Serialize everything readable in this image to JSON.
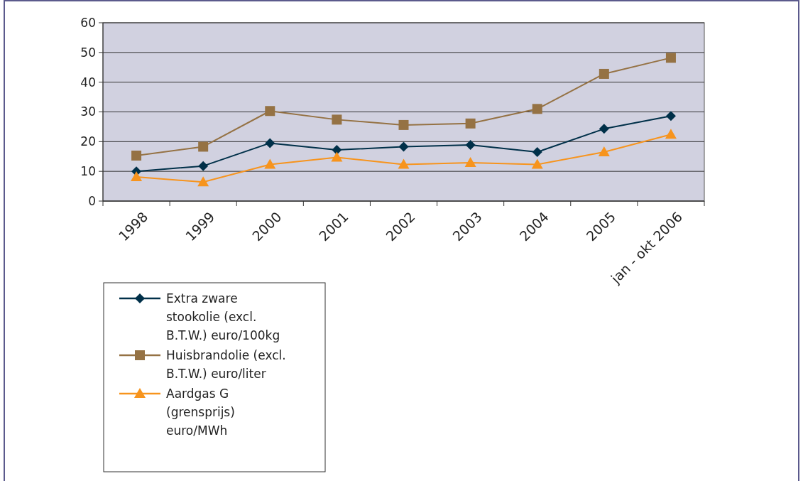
{
  "chart_data": {
    "type": "line",
    "categories": [
      "1998",
      "1999",
      "2000",
      "2001",
      "2002",
      "2003",
      "2004",
      "2005",
      "jan - okt 2006"
    ],
    "series": [
      {
        "name": "Extra zware stookolie (excl. B.T.W.) euro/100kg",
        "color": "#003049",
        "marker": "diamond",
        "values": [
          10,
          11.8,
          19.5,
          17.2,
          18.3,
          18.9,
          16.5,
          24.3,
          28.6
        ]
      },
      {
        "name": "Huisbrandolie (excl. B.T.W.) euro/liter",
        "color": "#957244",
        "marker": "square",
        "values": [
          15.3,
          18.3,
          30.3,
          27.4,
          25.6,
          26.1,
          31,
          42.8,
          48.2
        ]
      },
      {
        "name": "Aardgas G (grensprijs) euro/MWh",
        "color": "#f7941d",
        "marker": "triangle",
        "values": [
          8.1,
          6.4,
          12.3,
          14.7,
          12.3,
          12.9,
          12.3,
          16.5,
          22.4
        ]
      }
    ],
    "ylim": [
      0,
      60
    ],
    "yticks": [
      0,
      10,
      20,
      30,
      40,
      50,
      60
    ],
    "grid": "y",
    "legend": "bottom left",
    "line_style": "solid"
  }
}
